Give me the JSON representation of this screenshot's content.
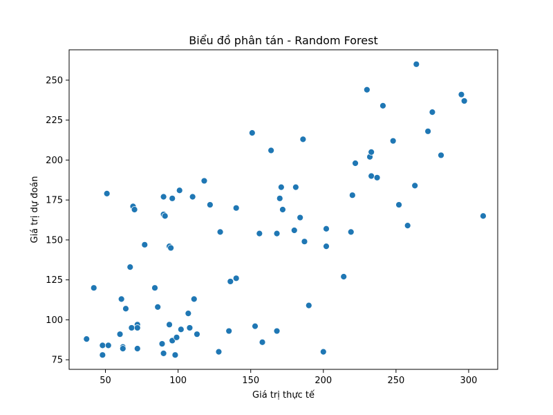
{
  "chart_data": {
    "type": "scatter",
    "title": "Biểu đồ phân tán - Random Forest",
    "xlabel": "Giá trị thực tế",
    "ylabel": "Giá trị dự đoán",
    "xlim": [
      25,
      320
    ],
    "ylim": [
      69,
      269
    ],
    "xticks": [
      50,
      100,
      150,
      200,
      250,
      300
    ],
    "yticks": [
      75,
      100,
      125,
      150,
      175,
      200,
      225,
      250
    ],
    "grid": false,
    "point_color": "#1f77b4",
    "points": [
      [
        37,
        88
      ],
      [
        42,
        120
      ],
      [
        48,
        84
      ],
      [
        48,
        78
      ],
      [
        51,
        179
      ],
      [
        52,
        84
      ],
      [
        60,
        91
      ],
      [
        61,
        113
      ],
      [
        62,
        83
      ],
      [
        62,
        82
      ],
      [
        64,
        107
      ],
      [
        67,
        133
      ],
      [
        68,
        95
      ],
      [
        69,
        171
      ],
      [
        70,
        169
      ],
      [
        72,
        97
      ],
      [
        72,
        95
      ],
      [
        72,
        82
      ],
      [
        77,
        147
      ],
      [
        84,
        120
      ],
      [
        86,
        108
      ],
      [
        89,
        85
      ],
      [
        90,
        177
      ],
      [
        90,
        79
      ],
      [
        90,
        166
      ],
      [
        91,
        165
      ],
      [
        94,
        146
      ],
      [
        94,
        97
      ],
      [
        95,
        145
      ],
      [
        96,
        176
      ],
      [
        96,
        87
      ],
      [
        98,
        78
      ],
      [
        99,
        89
      ],
      [
        101,
        181
      ],
      [
        102,
        94
      ],
      [
        107,
        104
      ],
      [
        108,
        95
      ],
      [
        110,
        177
      ],
      [
        111,
        113
      ],
      [
        113,
        91
      ],
      [
        118,
        187
      ],
      [
        122,
        172
      ],
      [
        128,
        80
      ],
      [
        129,
        155
      ],
      [
        135,
        93
      ],
      [
        136,
        124
      ],
      [
        140,
        170
      ],
      [
        140,
        126
      ],
      [
        151,
        217
      ],
      [
        153,
        96
      ],
      [
        156,
        154
      ],
      [
        158,
        86
      ],
      [
        164,
        206
      ],
      [
        168,
        154
      ],
      [
        168,
        93
      ],
      [
        170,
        176
      ],
      [
        171,
        183
      ],
      [
        172,
        169
      ],
      [
        180,
        156
      ],
      [
        181,
        183
      ],
      [
        184,
        164
      ],
      [
        186,
        213
      ],
      [
        187,
        149
      ],
      [
        190,
        109
      ],
      [
        200,
        80
      ],
      [
        202,
        157
      ],
      [
        202,
        146
      ],
      [
        214,
        127
      ],
      [
        219,
        155
      ],
      [
        220,
        178
      ],
      [
        222,
        198
      ],
      [
        230,
        244
      ],
      [
        232,
        202
      ],
      [
        233,
        205
      ],
      [
        233,
        190
      ],
      [
        237,
        189
      ],
      [
        241,
        234
      ],
      [
        248,
        212
      ],
      [
        252,
        172
      ],
      [
        258,
        159
      ],
      [
        263,
        184
      ],
      [
        264,
        260
      ],
      [
        272,
        218
      ],
      [
        275,
        230
      ],
      [
        281,
        203
      ],
      [
        295,
        241
      ],
      [
        297,
        237
      ],
      [
        310,
        165
      ]
    ]
  }
}
